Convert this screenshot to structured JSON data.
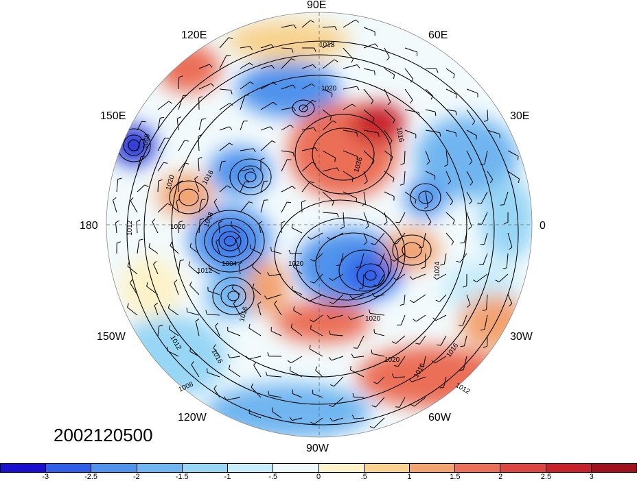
{
  "map": {
    "projection": "north-polar-stereographic",
    "longitude_labels": {
      "top": "90E",
      "upper_left": "120E",
      "upper_right": "60E",
      "left_upper": "150E",
      "right_upper": "30E",
      "left": "180",
      "right": "0",
      "left_lower": "150W",
      "right_lower": "30W",
      "lower_left": "120W",
      "lower_right": "60W",
      "bottom": "90W"
    },
    "isobar_labels": [
      "1012",
      "1020",
      "1008",
      "1020",
      "1016",
      "1020",
      "1008",
      "1012",
      "1004",
      "1012",
      "1016",
      "1016",
      "1012",
      "1016",
      "1020",
      "1024",
      "1020",
      "1016",
      "1016",
      "1012",
      "1008",
      "1036",
      "1020"
    ],
    "overlays": [
      "temperature anomaly shading",
      "sea level pressure contours (hPa)",
      "wind barbs",
      "coastlines"
    ]
  },
  "date_label": "2002120500",
  "colorbar": {
    "colors": [
      "#1a0fd1",
      "#2f5ee8",
      "#4f93ec",
      "#6fb5f0",
      "#97d6f5",
      "#c7ecfa",
      "#eef9fb",
      "#fdf2c8",
      "#f8d28e",
      "#f3a36f",
      "#eb6e57",
      "#de4440",
      "#c8212c",
      "#a0101d"
    ],
    "labels": [
      "-3",
      "-2.5",
      "-2",
      "-1.5",
      "-1",
      "-.5",
      "0",
      ".5",
      "1",
      "1.5",
      "2",
      "2.5",
      "3"
    ]
  }
}
